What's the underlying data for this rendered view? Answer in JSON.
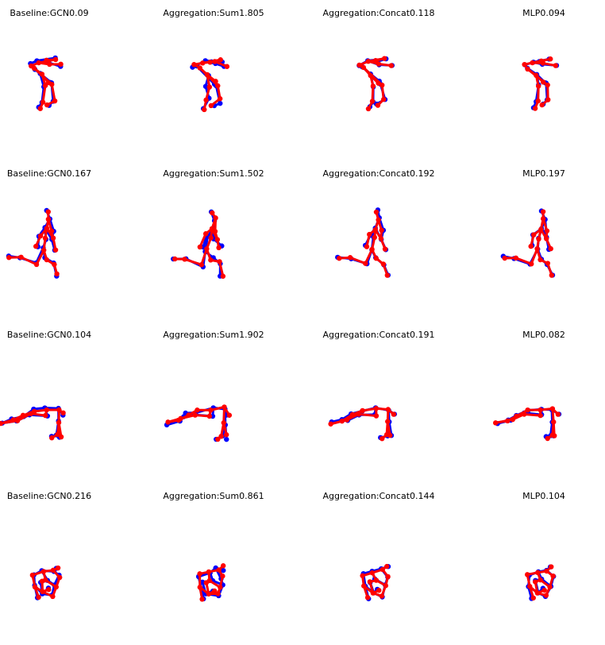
{
  "colors": {
    "ground_truth": "#0000ff",
    "prediction": "#ff0000",
    "background": "#ffffff"
  },
  "rows": [
    [
      {
        "title": "Baseline:GCN0.09"
      },
      {
        "title": "Aggregation:Sum1.805"
      },
      {
        "title": "Aggregation:Concat0.118"
      },
      {
        "title": "MLP0.094"
      }
    ],
    [
      {
        "title": "Baseline:GCN0.167"
      },
      {
        "title": "Aggregation:Sum1.502"
      },
      {
        "title": "Aggregation:Concat0.192"
      },
      {
        "title": "MLP0.197"
      }
    ],
    [
      {
        "title": "Baseline:GCN0.104"
      },
      {
        "title": "Aggregation:Sum1.902"
      },
      {
        "title": "Aggregation:Concat0.191"
      },
      {
        "title": "MLP0.082"
      }
    ],
    [
      {
        "title": "Baseline:GCN0.216"
      },
      {
        "title": "Aggregation:Sum0.861"
      },
      {
        "title": "Aggregation:Concat0.144"
      },
      {
        "title": "MLP0.104"
      }
    ]
  ]
}
